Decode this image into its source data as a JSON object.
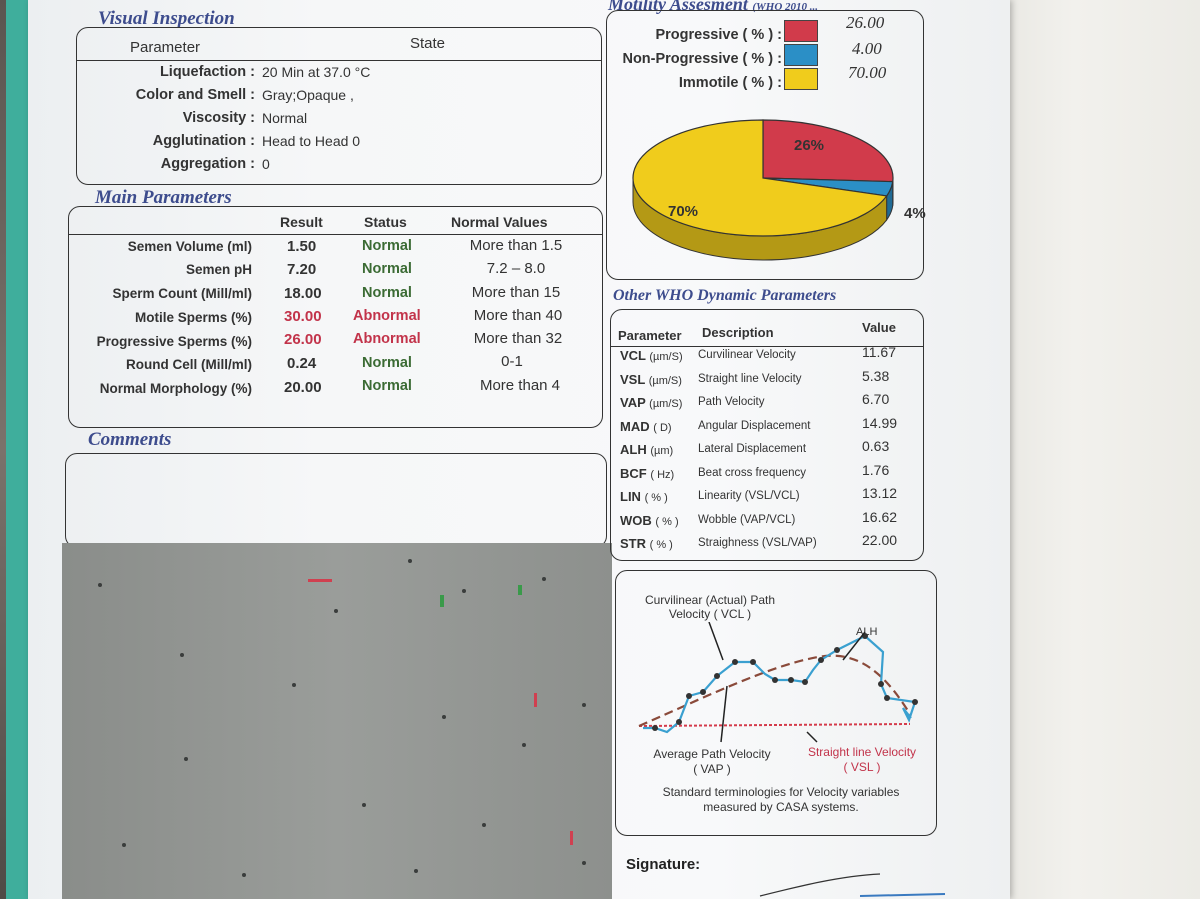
{
  "visual_inspection": {
    "title": "Visual Inspection",
    "col_parameter": "Parameter",
    "col_state": "State",
    "rows": [
      {
        "label": "Liquefaction :",
        "value": "20 Min at 37.0 °C"
      },
      {
        "label": "Color and Smell :",
        "value": "Gray;Opaque  ,"
      },
      {
        "label": "Viscosity :",
        "value": "Normal"
      },
      {
        "label": "Agglutination :",
        "value": "Head to Head  0"
      },
      {
        "label": "Aggregation :",
        "value": "0"
      }
    ]
  },
  "main_parameters": {
    "title": "Main Parameters",
    "col_result": "Result",
    "col_status": "Status",
    "col_normal": "Normal Values",
    "rows": [
      {
        "label": "Semen Volume (ml)",
        "result": "1.50",
        "status": "Normal",
        "normal": "More than 1.5",
        "abnormal": false
      },
      {
        "label": "Semen pH",
        "result": "7.20",
        "status": "Normal",
        "normal": "7.2 – 8.0",
        "abnormal": false
      },
      {
        "label": "Sperm Count (Mill/ml)",
        "result": "18.00",
        "status": "Normal",
        "normal": "More than  15",
        "abnormal": false
      },
      {
        "label": "Motile Sperms (%)",
        "result": "30.00",
        "status": "Abnormal",
        "normal": "More than 40",
        "abnormal": true
      },
      {
        "label": "Progressive Sperms (%)",
        "result": "26.00",
        "status": "Abnormal",
        "normal": "More than 32",
        "abnormal": true
      },
      {
        "label": "Round Cell (Mill/ml)",
        "result": "0.24",
        "status": "Normal",
        "normal": "0-1",
        "abnormal": false
      },
      {
        "label": "Normal Morphology (%)",
        "result": "20.00",
        "status": "Normal",
        "normal": "More than  4",
        "abnormal": false
      }
    ]
  },
  "comments": {
    "title": "Comments",
    "text": ""
  },
  "motility": {
    "title": "Motility Assesment",
    "title_suffix": "(WHO 2010 ...",
    "rows": [
      {
        "label": "Progressive  ( % ) :",
        "value": "26.00",
        "color": "#d13b4b"
      },
      {
        "label": "Non-Progressive ( % ) :",
        "value": "4.00",
        "color": "#2b8fc6"
      },
      {
        "label": "Immotile ( % ) :",
        "value": "70.00",
        "color": "#f0cc1c"
      }
    ],
    "pie_labels": {
      "progressive": "26%",
      "immotile": "70%",
      "non_progressive": "4%"
    }
  },
  "chart_data": {
    "type": "pie",
    "title": "Motility Assesment",
    "categories": [
      "Progressive",
      "Non-Progressive",
      "Immotile"
    ],
    "values": [
      26,
      4,
      70
    ],
    "colors": [
      "#d13b4b",
      "#2b8fc6",
      "#f0cc1c"
    ]
  },
  "who_params": {
    "title": "Other WHO Dynamic Parameters",
    "col_parameter": "Parameter",
    "col_description": "Description",
    "col_value": "Value",
    "rows": [
      {
        "code": "VCL",
        "unit": "(µm/S)",
        "desc": "Curvilinear Velocity",
        "value": "11.67"
      },
      {
        "code": "VSL",
        "unit": "(µm/S)",
        "desc": "Straight line Velocity",
        "value": "5.38"
      },
      {
        "code": "VAP",
        "unit": "(µm/S)",
        "desc": "Path Velocity",
        "value": "6.70"
      },
      {
        "code": "MAD",
        "unit": "( D)",
        "desc": "Angular Displacement",
        "value": "14.99"
      },
      {
        "code": "ALH",
        "unit": "(µm)",
        "desc": "Lateral Displacement",
        "value": "0.63"
      },
      {
        "code": "BCF",
        "unit": "( Hz)",
        "desc": "Beat cross frequency",
        "value": "1.76"
      },
      {
        "code": "LIN",
        "unit": "( % )",
        "desc": "Linearity (VSL/VCL)",
        "value": "13.12"
      },
      {
        "code": "WOB",
        "unit": "( % )",
        "desc": "Wobble  (VAP/VCL)",
        "value": "16.62"
      },
      {
        "code": "STR",
        "unit": "( % )",
        "desc": "Straighness (VSL/VAP)",
        "value": "22.00"
      }
    ]
  },
  "diagram": {
    "vcl_label_1": "Curvilinear (Actual) Path",
    "vcl_label_2": "Velocity ( VCL )",
    "alh": "ALH",
    "vap_label_1": "Average Path Velocity",
    "vap_label_2": "( VAP )",
    "vsl_label_1": "Straight line Velocity",
    "vsl_label_2": "( VSL )",
    "caption_1": "Standard terminologies for Velocity variables",
    "caption_2": "measured by CASA systems."
  },
  "signature": {
    "label": "Signature:"
  }
}
